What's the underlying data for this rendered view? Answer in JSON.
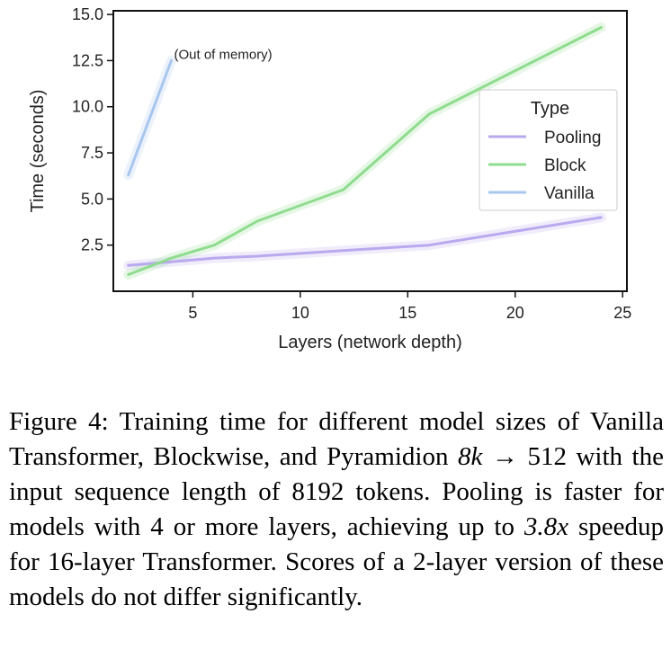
{
  "chart_data": {
    "type": "line",
    "xlabel": "Layers (network depth)",
    "ylabel": "Time (seconds)",
    "xlim": [
      1.3,
      25.2
    ],
    "ylim": [
      0,
      15.2
    ],
    "xticks": [
      5,
      10,
      15,
      20,
      25
    ],
    "xtick_labels": [
      "5",
      "10",
      "15",
      "20",
      "25"
    ],
    "yticks": [
      2.5,
      5.0,
      7.5,
      10.0,
      12.5,
      15.0
    ],
    "ytick_labels": [
      "2.5",
      "5.0",
      "7.5",
      "10.0",
      "12.5",
      "15.0"
    ],
    "legend": {
      "title": "Type",
      "position": "center-right"
    },
    "series": [
      {
        "name": "Pooling",
        "color": "#b9a9ee",
        "x": [
          2,
          4,
          6,
          8,
          12,
          16,
          24
        ],
        "y": [
          1.4,
          1.6,
          1.8,
          1.9,
          2.2,
          2.5,
          4.0
        ]
      },
      {
        "name": "Block",
        "color": "#8fdc8f",
        "x": [
          2,
          4,
          6,
          8,
          12,
          16,
          24
        ],
        "y": [
          0.9,
          1.8,
          2.5,
          3.8,
          5.5,
          9.6,
          14.3
        ]
      },
      {
        "name": "Vanilla",
        "color": "#a9c6ee",
        "x": [
          2,
          4
        ],
        "y": [
          6.3,
          12.5
        ]
      }
    ],
    "annotation": {
      "text": "(Out of memory)",
      "x": 4,
      "y": 12.5
    }
  },
  "caption": {
    "label": "Figure 4:",
    "part1": "Training time for different model sizes of Vanilla Transformer, Blockwise, and Pyramidion",
    "math1": "8k →",
    "math2": "512",
    "part2": "with the input sequence length of",
    "math3": "8192",
    "part3": "tokens. Pooling is faster for models with",
    "math4": "4",
    "part4": "or more layers, achieving up to",
    "math5": "3.8x",
    "part5": "speedup for 16-layer Transformer. Scores of a 2-layer version of these models do not differ significantly."
  }
}
